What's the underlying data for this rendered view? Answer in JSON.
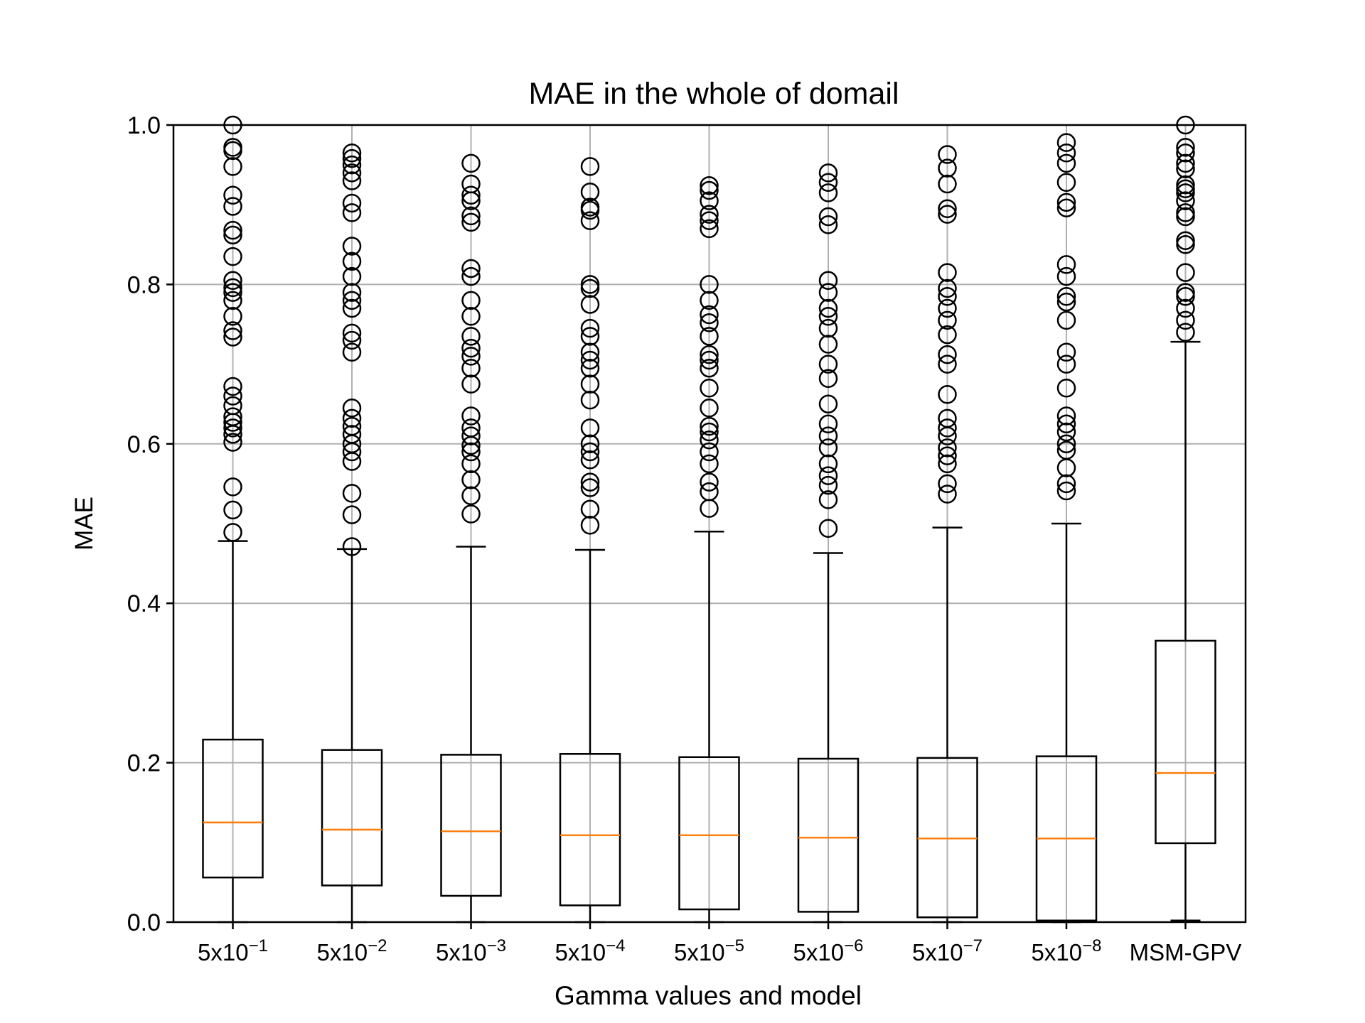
{
  "chart_data": {
    "type": "box",
    "title": "MAE in the whole of domail",
    "xlabel": "Gamma values and model",
    "ylabel": "MAE",
    "ylim": [
      0.0,
      1.0
    ],
    "yticks": [
      "0.0",
      "0.2",
      "0.4",
      "0.6",
      "0.8",
      "1.0"
    ],
    "grid": true,
    "categories": [
      {
        "base": "5x10",
        "exp": "−1"
      },
      {
        "base": "5x10",
        "exp": "−2"
      },
      {
        "base": "5x10",
        "exp": "−3"
      },
      {
        "base": "5x10",
        "exp": "−4"
      },
      {
        "base": "5x10",
        "exp": "−5"
      },
      {
        "base": "5x10",
        "exp": "−6"
      },
      {
        "base": "5x10",
        "exp": "−7"
      },
      {
        "base": "5x10",
        "exp": "−8"
      },
      {
        "base": "MSM-GPV",
        "exp": ""
      }
    ],
    "boxes": [
      {
        "whislo": 0.0,
        "q1": 0.056,
        "med": 0.125,
        "q3": 0.229,
        "whishi": 0.478,
        "fliers": [
          0.489,
          0.517,
          0.546,
          0.602,
          0.612,
          0.62,
          0.627,
          0.634,
          0.648,
          0.66,
          0.672,
          0.734,
          0.742,
          0.76,
          0.78,
          0.79,
          0.796,
          0.805,
          0.835,
          0.862,
          0.868,
          0.898,
          0.912,
          0.948,
          0.968,
          0.972,
          1.0
        ]
      },
      {
        "whislo": 0.0,
        "q1": 0.046,
        "med": 0.116,
        "q3": 0.216,
        "whishi": 0.468,
        "fliers": [
          0.471,
          0.511,
          0.538,
          0.578,
          0.59,
          0.6,
          0.612,
          0.622,
          0.632,
          0.645,
          0.715,
          0.73,
          0.739,
          0.77,
          0.78,
          0.79,
          0.81,
          0.829,
          0.848,
          0.89,
          0.902,
          0.93,
          0.94,
          0.95,
          0.958,
          0.965
        ]
      },
      {
        "whislo": 0.0,
        "q1": 0.033,
        "med": 0.114,
        "q3": 0.21,
        "whishi": 0.471,
        "fliers": [
          0.512,
          0.535,
          0.555,
          0.575,
          0.59,
          0.598,
          0.61,
          0.62,
          0.635,
          0.675,
          0.695,
          0.71,
          0.72,
          0.735,
          0.76,
          0.78,
          0.81,
          0.82,
          0.878,
          0.886,
          0.905,
          0.912,
          0.926,
          0.952
        ]
      },
      {
        "whislo": 0.0,
        "q1": 0.021,
        "med": 0.109,
        "q3": 0.211,
        "whishi": 0.467,
        "fliers": [
          0.498,
          0.518,
          0.545,
          0.552,
          0.58,
          0.59,
          0.6,
          0.62,
          0.655,
          0.675,
          0.695,
          0.705,
          0.715,
          0.735,
          0.745,
          0.775,
          0.795,
          0.8,
          0.88,
          0.893,
          0.897,
          0.916,
          0.948
        ]
      },
      {
        "whislo": 0.0,
        "q1": 0.016,
        "med": 0.109,
        "q3": 0.207,
        "whishi": 0.49,
        "fliers": [
          0.519,
          0.54,
          0.552,
          0.575,
          0.59,
          0.605,
          0.615,
          0.622,
          0.645,
          0.67,
          0.695,
          0.705,
          0.712,
          0.735,
          0.752,
          0.762,
          0.78,
          0.8,
          0.87,
          0.88,
          0.888,
          0.905,
          0.918,
          0.924
        ]
      },
      {
        "whislo": 0.0,
        "q1": 0.013,
        "med": 0.106,
        "q3": 0.205,
        "whishi": 0.463,
        "fliers": [
          0.494,
          0.53,
          0.548,
          0.56,
          0.575,
          0.595,
          0.61,
          0.625,
          0.65,
          0.682,
          0.7,
          0.725,
          0.745,
          0.76,
          0.77,
          0.79,
          0.805,
          0.875,
          0.885,
          0.915,
          0.928,
          0.94
        ]
      },
      {
        "whislo": 0.0,
        "q1": 0.006,
        "med": 0.105,
        "q3": 0.206,
        "whishi": 0.495,
        "fliers": [
          0.537,
          0.55,
          0.575,
          0.585,
          0.595,
          0.61,
          0.62,
          0.632,
          0.662,
          0.7,
          0.712,
          0.737,
          0.755,
          0.77,
          0.785,
          0.795,
          0.815,
          0.888,
          0.895,
          0.926,
          0.946,
          0.963
        ]
      },
      {
        "whislo": 0.0,
        "q1": 0.002,
        "med": 0.105,
        "q3": 0.208,
        "whishi": 0.5,
        "fliers": [
          0.541,
          0.55,
          0.57,
          0.592,
          0.6,
          0.615,
          0.625,
          0.635,
          0.67,
          0.7,
          0.715,
          0.755,
          0.778,
          0.785,
          0.81,
          0.825,
          0.896,
          0.903,
          0.928,
          0.952,
          0.965,
          0.978
        ]
      },
      {
        "whislo": 0.002,
        "q1": 0.099,
        "med": 0.187,
        "q3": 0.353,
        "whishi": 0.728,
        "fliers": [
          0.74,
          0.755,
          0.77,
          0.785,
          0.79,
          0.815,
          0.85,
          0.855,
          0.885,
          0.89,
          0.905,
          0.915,
          0.92,
          0.925,
          0.945,
          0.952,
          0.965,
          0.972,
          1.0
        ]
      }
    ],
    "colors": {
      "box": "#000000",
      "median": "#ff7f0e",
      "grid": "#b0b0b0"
    }
  }
}
